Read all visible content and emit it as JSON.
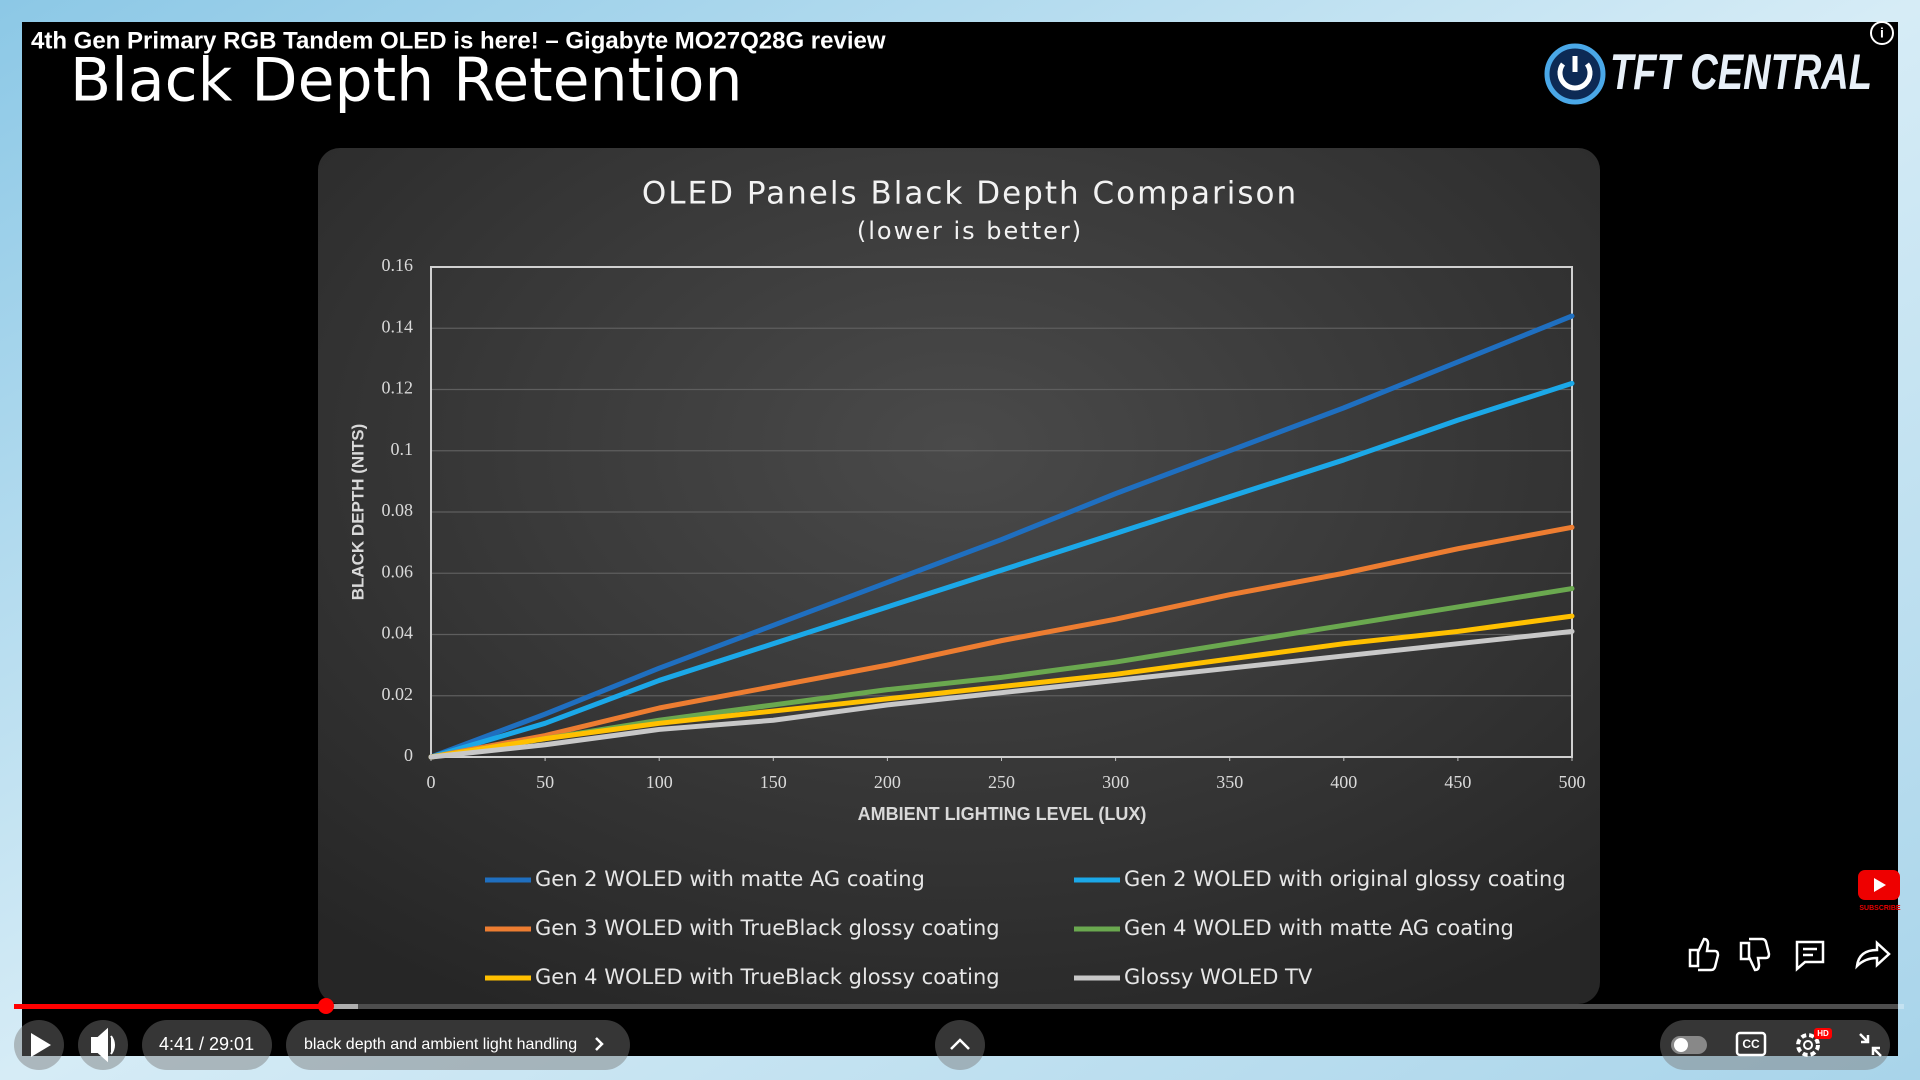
{
  "video": {
    "title": "4th Gen Primary RGB Tandem OLED is here! – Gigabyte MO27Q28G review",
    "slide_title": "Black Depth Retention",
    "logo": "TFT CENTRAL",
    "time": "4:41 / 29:01",
    "chapter": "black depth and ambient light handling",
    "subscribe": "SUBSCRIBE",
    "cc": "CC",
    "hd": "HD"
  },
  "chart_data": {
    "type": "line",
    "title": "OLED Panels Black Depth Comparison",
    "subtitle": "(lower is better)",
    "x_label": "AMBIENT LIGHTING LEVEL (LUX)",
    "y_label": "BLACK DEPTH (NITS)",
    "x": [
      0,
      50,
      100,
      150,
      200,
      250,
      300,
      350,
      400,
      450,
      500
    ],
    "xlim": [
      0,
      500
    ],
    "xticks": [
      0,
      50,
      100,
      150,
      200,
      250,
      300,
      350,
      400,
      450,
      500
    ],
    "ylim": [
      0,
      0.16
    ],
    "yticks": [
      0,
      0.02,
      0.04,
      0.06,
      0.08,
      0.1,
      0.12,
      0.14,
      0.16
    ],
    "grid": true,
    "series": [
      {
        "name": "Gen 2 WOLED with matte AG coating",
        "color": "#1f6fc0",
        "values": [
          0,
          0.014,
          0.029,
          0.043,
          0.057,
          0.071,
          0.086,
          0.1,
          0.114,
          0.129,
          0.144
        ]
      },
      {
        "name": "Gen 2 WOLED with original glossy coating",
        "color": "#1ba8e8",
        "values": [
          0,
          0.011,
          0.025,
          0.037,
          0.049,
          0.061,
          0.073,
          0.085,
          0.097,
          0.11,
          0.122
        ]
      },
      {
        "name": "Gen 3 WOLED with TrueBlack glossy coating",
        "color": "#ed7d31",
        "values": [
          0,
          0.007,
          0.016,
          0.023,
          0.03,
          0.038,
          0.045,
          0.053,
          0.06,
          0.068,
          0.075
        ]
      },
      {
        "name": "Gen 4 WOLED with matte AG coating",
        "color": "#6aa84f",
        "values": [
          0,
          0.006,
          0.012,
          0.017,
          0.022,
          0.026,
          0.031,
          0.037,
          0.043,
          0.049,
          0.055
        ]
      },
      {
        "name": "Gen 4 WOLED with TrueBlack glossy coating",
        "color": "#ffc000",
        "values": [
          0,
          0.006,
          0.011,
          0.015,
          0.019,
          0.023,
          0.027,
          0.032,
          0.037,
          0.041,
          0.046
        ]
      },
      {
        "name": "Glossy WOLED TV",
        "color": "#c8c8c8",
        "values": [
          0,
          0.004,
          0.009,
          0.012,
          0.017,
          0.021,
          0.025,
          0.029,
          0.033,
          0.037,
          0.041
        ]
      }
    ]
  }
}
